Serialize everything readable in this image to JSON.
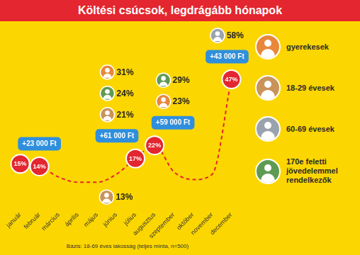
{
  "chart_data": {
    "type": "line",
    "title": "Költési csúcsok, legdrágább hónapok",
    "categories": [
      "január",
      "február",
      "március",
      "április",
      "május",
      "június",
      "július",
      "augusztus",
      "szeptember",
      "október",
      "november",
      "december"
    ],
    "values": [
      15,
      14,
      10,
      8,
      8,
      11,
      17,
      22,
      12,
      9,
      11,
      47
    ],
    "value_labels": [
      "15%",
      "14%",
      null,
      null,
      null,
      null,
      "17%",
      "22%",
      null,
      null,
      null,
      "47%"
    ],
    "color": "#e3262f",
    "line_style": "dashed",
    "marker": "circle",
    "data_labels": true,
    "ylim": [
      0,
      65
    ],
    "tick_labels": "x",
    "grid": false,
    "groups": [
      {
        "name": "gyerekesek",
        "color": "#e8873a"
      },
      {
        "name": "18-29 évesek",
        "color": "#c9935a"
      },
      {
        "name": "60-69 évesek",
        "color": "#9aa3ad"
      },
      {
        "name": "170e feletti jövedelemmel rendelkezők",
        "color": "#5f9a52"
      }
    ],
    "annotations": [
      {
        "category": "június",
        "group": "18-29 évesek",
        "label": "13%"
      },
      {
        "category": "július",
        "group": "18-29 évesek",
        "label": "21%"
      },
      {
        "category": "július",
        "group": "170e feletti jövedelemmel rendelkezők",
        "label": "24%"
      },
      {
        "category": "július",
        "group": "gyerekesek",
        "label": "31%"
      },
      {
        "category": "augusztus",
        "group": "gyerekesek",
        "label": "23%"
      },
      {
        "category": "augusztus",
        "group": "170e feletti jövedelemmel rendelkezők",
        "label": "29%"
      },
      {
        "category": "december",
        "group": "60-69 évesek",
        "label": "58%"
      }
    ],
    "amounts": [
      {
        "category": "február",
        "label": "+23 000 Ft"
      },
      {
        "category": "július",
        "label": "+61 000 Ft"
      },
      {
        "category": "augusztus",
        "label": "+59 000 Ft"
      },
      {
        "category": "december",
        "label": "+43 000 Ft"
      }
    ],
    "note": "Bázis: 18-69 éves lakosság (teljes minta, n=500)"
  }
}
